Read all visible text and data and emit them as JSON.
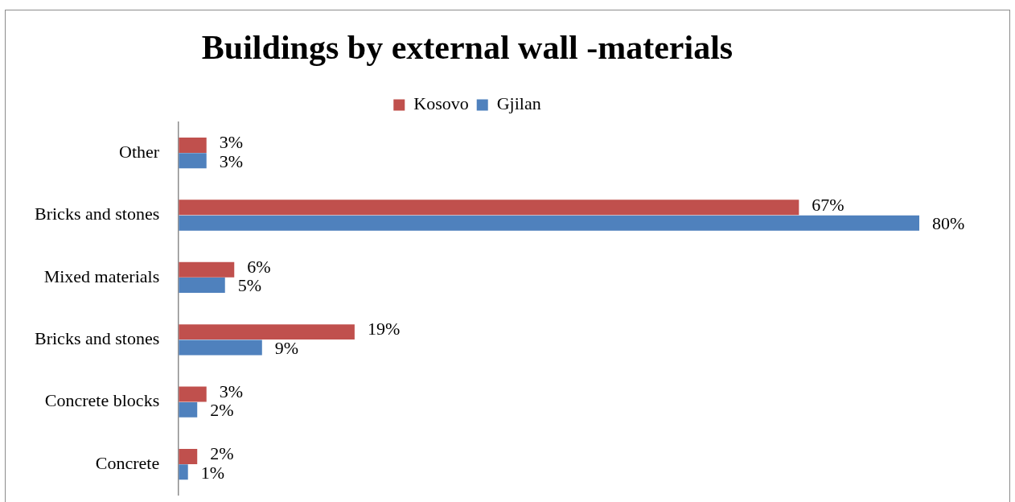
{
  "chart_data": {
    "type": "bar",
    "orientation": "horizontal",
    "title": "Buildings by external wall -materials",
    "categories": [
      "Other",
      "Bricks and stones",
      "Mixed materials",
      "Bricks and stones",
      "Concrete blocks",
      "Concrete"
    ],
    "series": [
      {
        "name": "Kosovo",
        "color": "#c0504d",
        "values": [
          3,
          67,
          6,
          19,
          3,
          2
        ],
        "value_labels": [
          "3%",
          "67%",
          "6%",
          "19%",
          "3%",
          "2%"
        ]
      },
      {
        "name": "Gjilan",
        "color": "#4f81bd",
        "values": [
          3,
          80,
          5,
          9,
          2,
          1
        ],
        "value_labels": [
          "3%",
          "80%",
          "5%",
          "9%",
          "2%",
          "1%"
        ]
      }
    ],
    "legend": "top",
    "tick_labels": "y"
  }
}
